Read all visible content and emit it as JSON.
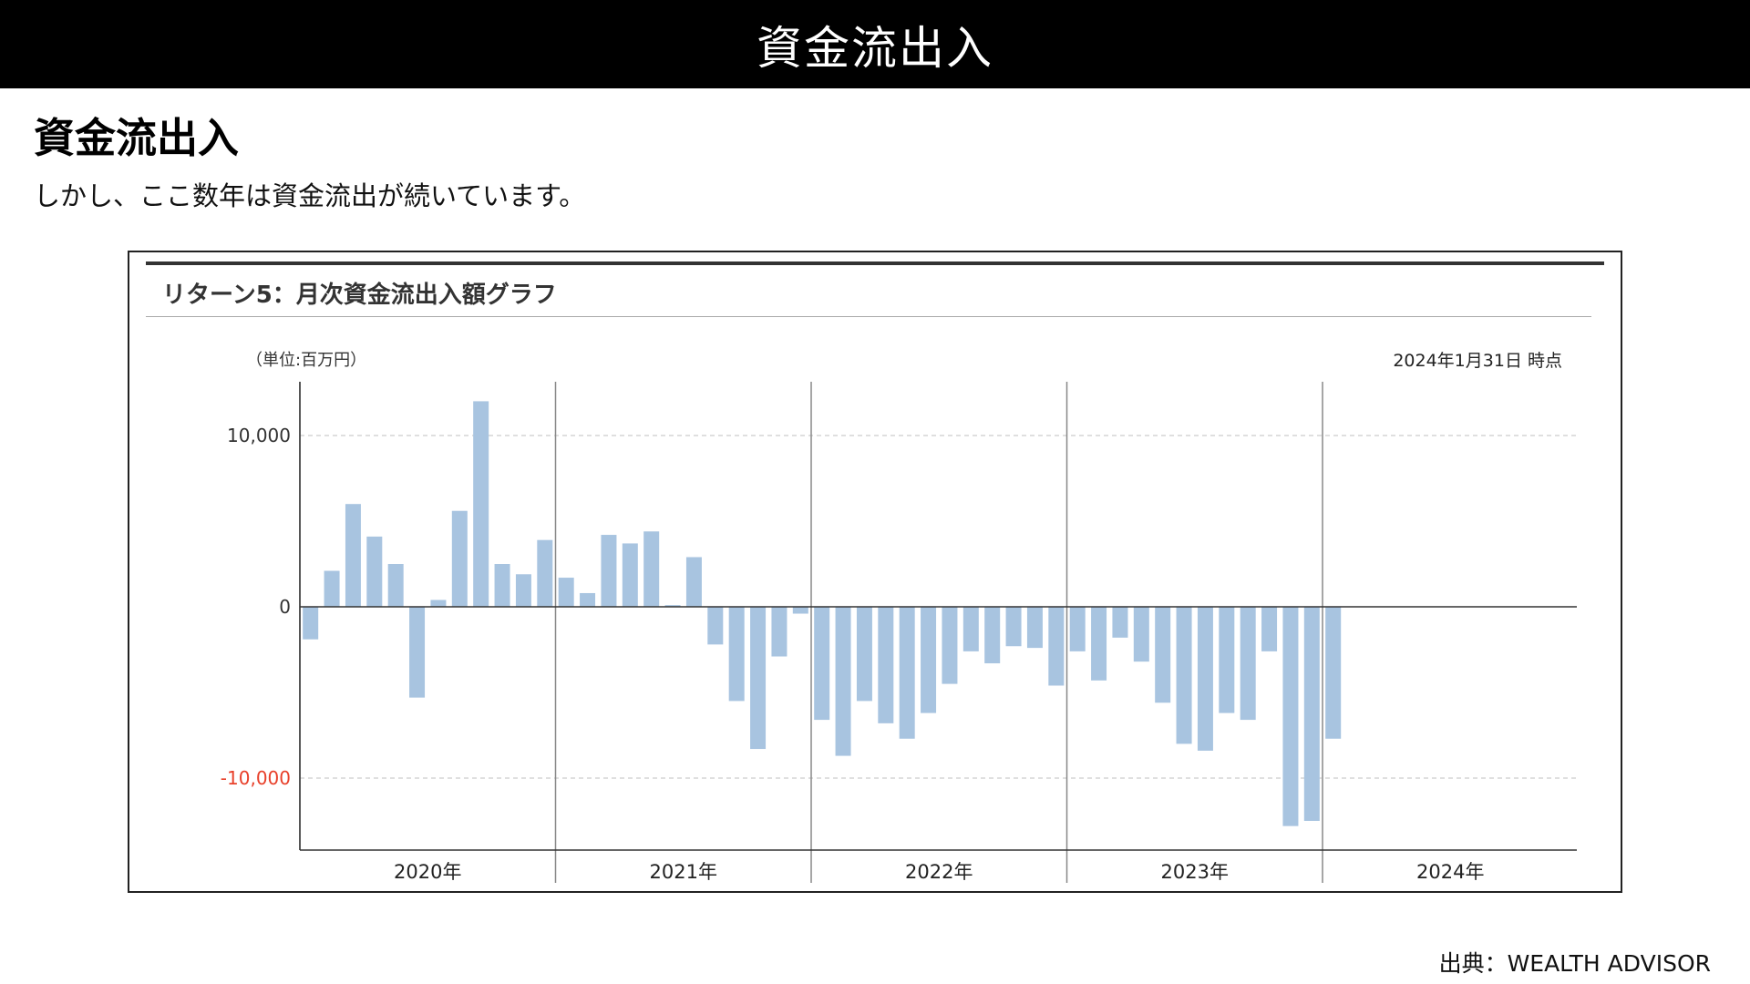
{
  "header": {
    "banner_title": "資金流出入"
  },
  "section": {
    "heading": "資金流出入",
    "lead": "しかし、ここ数年は資金流出が続いています。"
  },
  "chart_panel": {
    "title": "リターン5：月次資金流出入額グラフ",
    "unit": "（単位:百万円）",
    "as_of": "2024年1月31日 時点"
  },
  "source": "出典：WEALTH ADVISOR",
  "colors": {
    "bar": "#a8c4e0",
    "negative_tick": "#e8402a",
    "axis": "#333333",
    "grid": "#cccccc"
  },
  "chart_data": {
    "type": "bar",
    "ylim": [
      -14000,
      13000
    ],
    "y_ticks": [
      {
        "value": 10000,
        "label": "10,000",
        "grid": true
      },
      {
        "value": 0,
        "label": "0",
        "grid": false
      },
      {
        "value": -10000,
        "label": "-10,000",
        "grid": true,
        "color": "negative"
      }
    ],
    "grid": "dashed at ±10,000",
    "years": [
      "2020年",
      "2021年",
      "2022年",
      "2023年",
      "2024年"
    ],
    "series": [
      {
        "months": [
          "2020-01",
          "2020-02",
          "2020-03",
          "2020-04",
          "2020-05",
          "2020-06",
          "2020-07",
          "2020-08",
          "2020-09",
          "2020-10",
          "2020-11",
          "2020-12",
          "2021-01",
          "2021-02",
          "2021-03",
          "2021-04",
          "2021-05",
          "2021-06",
          "2021-07",
          "2021-08",
          "2021-09",
          "2021-10",
          "2021-11",
          "2021-12",
          "2022-01",
          "2022-02",
          "2022-03",
          "2022-04",
          "2022-05",
          "2022-06",
          "2022-07",
          "2022-08",
          "2022-09",
          "2022-10",
          "2022-11",
          "2022-12",
          "2023-01",
          "2023-02",
          "2023-03",
          "2023-04",
          "2023-05",
          "2023-06",
          "2023-07",
          "2023-08",
          "2023-09",
          "2023-10",
          "2023-11",
          "2023-12",
          "2024-01"
        ],
        "values": [
          -1900,
          2100,
          6000,
          4100,
          2500,
          -5300,
          400,
          5600,
          12000,
          2500,
          1900,
          3900,
          1700,
          800,
          4200,
          3700,
          4400,
          100,
          2900,
          -2200,
          -5500,
          -8300,
          -2900,
          -400,
          -6600,
          -8700,
          -5500,
          -6800,
          -7700,
          -6200,
          -4500,
          -2600,
          -3300,
          -2300,
          -2400,
          -4600,
          -2600,
          -4300,
          -1800,
          -3200,
          -5600,
          -8000,
          -8400,
          -6200,
          -6600,
          -2600,
          -12800,
          -12500,
          -7700
        ]
      }
    ]
  }
}
